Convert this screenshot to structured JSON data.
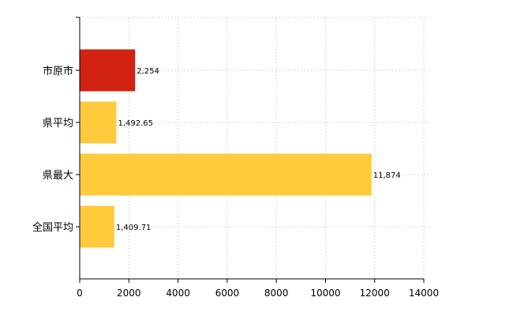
{
  "chart_data": {
    "type": "bar",
    "orientation": "horizontal",
    "categories": [
      "市原市",
      "県平均",
      "県最大",
      "全国平均"
    ],
    "values": [
      2254,
      1492.65,
      11874,
      1409.71
    ],
    "value_labels": [
      "2,254",
      "1,492.65",
      "11,874",
      "1,409.71"
    ],
    "bar_colors": [
      "#d32211",
      "#ffcb3d",
      "#ffcb3d",
      "#ffcb3d"
    ],
    "title": "",
    "xlabel": "",
    "ylabel": "",
    "xlim": [
      0,
      14000
    ],
    "x_ticks": [
      0,
      2000,
      4000,
      6000,
      8000,
      10000,
      12000,
      14000
    ],
    "x_tick_labels": [
      "0",
      "2000",
      "4000",
      "6000",
      "8000",
      "10000",
      "12000",
      "14000"
    ],
    "grid": true,
    "legend": "none"
  }
}
